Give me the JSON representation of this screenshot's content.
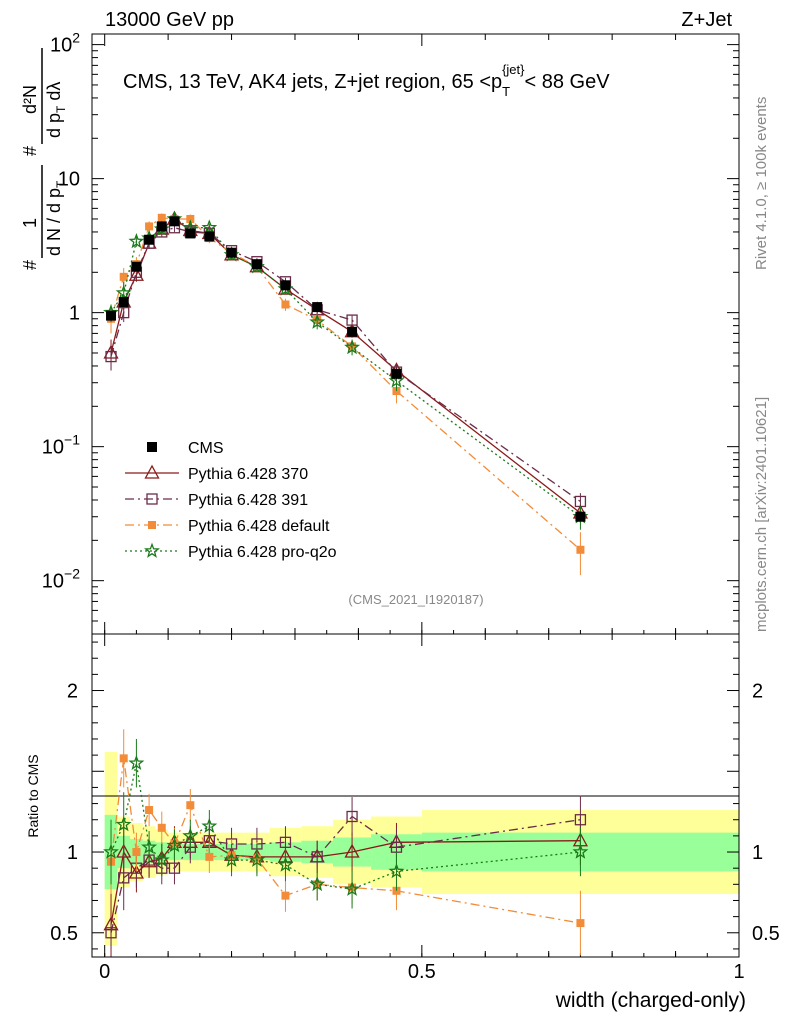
{
  "header": {
    "left": "13000 GeV pp",
    "right": "Z+Jet",
    "side_right_top": "Rivet 4.1.0, ≥ 100k events",
    "side_right_bottom": "mcplots.cern.ch [arXiv:2401.10621]"
  },
  "chart_data": [
    {
      "type": "scatter",
      "title": "CMS, 13 TeV, AK4 jets, Z+jet region, 65 <p_T^{jet}< 88 GeV",
      "title_parts": {
        "main": "CMS, 13 TeV, AK4 jets, Z+jet region, 65 <p",
        "sub": "T",
        "sup": "{jet}",
        "tail": "< 88 GeV"
      },
      "ylabel_parts": {
        "num1": "1",
        "den1": "d N / d p",
        "den1_sub": "T",
        "num2": "d²N",
        "den2": "d p",
        "den2_sub": "T",
        "den2_tail": " dλ",
        "hash": "#"
      },
      "yscale": "log",
      "ylim": [
        0.004,
        120
      ],
      "yticks": [
        {
          "v": 0.01,
          "base": "10",
          "exp": "−2"
        },
        {
          "v": 0.1,
          "base": "10",
          "exp": "−1"
        },
        {
          "v": 1,
          "base": "1",
          "exp": ""
        },
        {
          "v": 10,
          "base": "10",
          "exp": ""
        },
        {
          "v": 100,
          "base": "10",
          "exp": "2"
        }
      ],
      "xlim": [
        -0.02,
        1.0
      ],
      "watermark": "(CMS_2021_I1920187)",
      "legend_position": "lower-left",
      "x": [
        0.01,
        0.03,
        0.05,
        0.07,
        0.09,
        0.11,
        0.135,
        0.165,
        0.2,
        0.24,
        0.285,
        0.335,
        0.39,
        0.46,
        0.75
      ],
      "series": [
        {
          "name": "CMS",
          "color": "#000000",
          "marker": "square",
          "line": "none",
          "values": [
            0.95,
            1.2,
            2.2,
            3.5,
            4.4,
            4.8,
            3.9,
            3.7,
            2.8,
            2.3,
            1.6,
            1.1,
            0.72,
            0.35,
            0.03
          ],
          "errors": [
            0.08,
            0.1,
            0.15,
            0.2,
            0.25,
            0.25,
            0.2,
            0.2,
            0.15,
            0.12,
            0.1,
            0.06,
            0.05,
            0.03,
            0.002
          ]
        },
        {
          "name": "Pythia 6.428 370",
          "color": "#8b1a1a",
          "marker": "triangle",
          "line": "solid",
          "values": [
            0.5,
            1.2,
            1.9,
            3.3,
            4.2,
            5.0,
            4.1,
            3.9,
            2.7,
            2.2,
            1.5,
            1.05,
            0.72,
            0.37,
            0.032
          ],
          "errors": [
            0.13,
            0.15,
            0.2,
            0.3,
            0.3,
            0.3,
            0.3,
            0.3,
            0.2,
            0.15,
            0.12,
            0.1,
            0.07,
            0.05,
            0.005
          ]
        },
        {
          "name": "Pythia 6.428 391",
          "color": "#6b2c4a",
          "marker": "open-square",
          "line": "dashdot",
          "values": [
            0.47,
            1.0,
            2.0,
            3.3,
            4.0,
            4.3,
            4.0,
            3.9,
            2.9,
            2.4,
            1.7,
            1.05,
            0.88,
            0.36,
            0.039
          ],
          "errors": [
            0.1,
            0.15,
            0.2,
            0.3,
            0.3,
            0.3,
            0.3,
            0.3,
            0.2,
            0.15,
            0.12,
            0.1,
            0.07,
            0.05,
            0.006
          ]
        },
        {
          "name": "Pythia 6.428 default",
          "color": "#f28c38",
          "marker": "filled-square",
          "line": "dashdot",
          "values": [
            0.9,
            1.85,
            2.3,
            4.4,
            5.1,
            5.0,
            5.0,
            3.6,
            2.8,
            2.2,
            1.15,
            0.88,
            0.56,
            0.26,
            0.017
          ],
          "errors": [
            0.2,
            0.3,
            0.3,
            0.4,
            0.4,
            0.4,
            0.4,
            0.3,
            0.2,
            0.15,
            0.12,
            0.1,
            0.07,
            0.05,
            0.006
          ]
        },
        {
          "name": "Pythia 6.428 pro-q2o",
          "color": "#1a7a1a",
          "marker": "star",
          "line": "dotted",
          "values": [
            1.0,
            1.4,
            3.4,
            3.6,
            4.2,
            5.0,
            4.3,
            4.3,
            2.7,
            2.2,
            1.5,
            0.85,
            0.55,
            0.31,
            0.03
          ],
          "errors": [
            0.15,
            0.3,
            0.3,
            0.4,
            0.4,
            0.4,
            0.4,
            0.3,
            0.2,
            0.15,
            0.12,
            0.1,
            0.07,
            0.05,
            0.006
          ]
        }
      ]
    },
    {
      "type": "line",
      "ylabel": "Ratio to CMS",
      "xlabel": "width (charged-only)",
      "ylim": [
        0.35,
        2.35
      ],
      "xlim": [
        -0.02,
        1.0
      ],
      "yticks": [
        0.5,
        1,
        2
      ],
      "ytick_labels": [
        "0.5",
        "1",
        "2"
      ],
      "xticks": [
        0,
        0.5,
        1
      ],
      "xtick_labels": [
        "0",
        "0.5",
        "1"
      ],
      "bin_edges": [
        0.0,
        0.02,
        0.04,
        0.06,
        0.08,
        0.1,
        0.12,
        0.15,
        0.18,
        0.22,
        0.26,
        0.31,
        0.36,
        0.42,
        0.5,
        1.0
      ],
      "band_yellow": [
        [
          0.42,
          1.62
        ],
        [
          0.78,
          1.22
        ],
        [
          0.82,
          1.18
        ],
        [
          0.84,
          1.16
        ],
        [
          0.86,
          1.14
        ],
        [
          0.88,
          1.12
        ],
        [
          0.88,
          1.12
        ],
        [
          0.88,
          1.12
        ],
        [
          0.88,
          1.12
        ],
        [
          0.88,
          1.12
        ],
        [
          0.85,
          1.15
        ],
        [
          0.84,
          1.16
        ],
        [
          0.8,
          1.2
        ],
        [
          0.78,
          1.22
        ],
        [
          0.74,
          1.26
        ]
      ],
      "band_green": [
        [
          0.77,
          1.23
        ],
        [
          0.9,
          1.1
        ],
        [
          0.92,
          1.08
        ],
        [
          0.93,
          1.07
        ],
        [
          0.94,
          1.06
        ],
        [
          0.95,
          1.05
        ],
        [
          0.95,
          1.05
        ],
        [
          0.95,
          1.05
        ],
        [
          0.95,
          1.05
        ],
        [
          0.95,
          1.05
        ],
        [
          0.94,
          1.06
        ],
        [
          0.93,
          1.07
        ],
        [
          0.91,
          1.09
        ],
        [
          0.89,
          1.11
        ],
        [
          0.88,
          1.12
        ]
      ],
      "x": [
        0.01,
        0.03,
        0.05,
        0.07,
        0.09,
        0.11,
        0.135,
        0.165,
        0.2,
        0.24,
        0.285,
        0.335,
        0.39,
        0.46,
        0.75
      ],
      "series": [
        {
          "name": "Pythia 6.428 370",
          "color": "#8b1a1a",
          "marker": "triangle",
          "line": "solid",
          "values": [
            0.55,
            1.0,
            0.87,
            0.94,
            0.96,
            1.06,
            1.06,
            1.06,
            0.98,
            0.97,
            0.97,
            0.97,
            1.0,
            1.06,
            1.07
          ],
          "errors": [
            0.2,
            0.18,
            0.12,
            0.1,
            0.1,
            0.1,
            0.1,
            0.1,
            0.1,
            0.1,
            0.1,
            0.1,
            0.12,
            0.12,
            0.15
          ]
        },
        {
          "name": "Pythia 6.428 391",
          "color": "#6b2c4a",
          "marker": "open-square",
          "line": "dashdot",
          "values": [
            0.5,
            0.84,
            0.9,
            0.95,
            0.9,
            0.9,
            1.03,
            1.07,
            1.05,
            1.05,
            1.06,
            0.97,
            1.22,
            1.03,
            1.2
          ],
          "errors": [
            0.1,
            0.2,
            0.12,
            0.1,
            0.1,
            0.1,
            0.1,
            0.1,
            0.1,
            0.1,
            0.1,
            0.1,
            0.12,
            0.12,
            0.15
          ]
        },
        {
          "name": "Pythia 6.428 default",
          "color": "#f28c38",
          "marker": "filled-square",
          "line": "dashdot",
          "values": [
            0.94,
            1.58,
            1.0,
            1.26,
            1.15,
            1.05,
            1.29,
            0.97,
            0.98,
            0.96,
            0.73,
            0.8,
            0.78,
            0.76,
            0.56
          ],
          "errors": [
            0.2,
            0.18,
            0.12,
            0.1,
            0.1,
            0.1,
            0.1,
            0.1,
            0.1,
            0.1,
            0.1,
            0.1,
            0.1,
            0.12,
            0.2
          ]
        },
        {
          "name": "Pythia 6.428 pro-q2o",
          "color": "#1a7a1a",
          "marker": "star",
          "line": "dotted",
          "values": [
            1.0,
            1.17,
            1.55,
            1.03,
            0.95,
            1.04,
            1.1,
            1.16,
            0.95,
            0.95,
            0.92,
            0.8,
            0.77,
            0.88,
            1.0
          ],
          "errors": [
            0.2,
            0.2,
            0.15,
            0.1,
            0.1,
            0.1,
            0.1,
            0.1,
            0.1,
            0.1,
            0.1,
            0.1,
            0.12,
            0.12,
            0.15
          ]
        }
      ]
    }
  ]
}
